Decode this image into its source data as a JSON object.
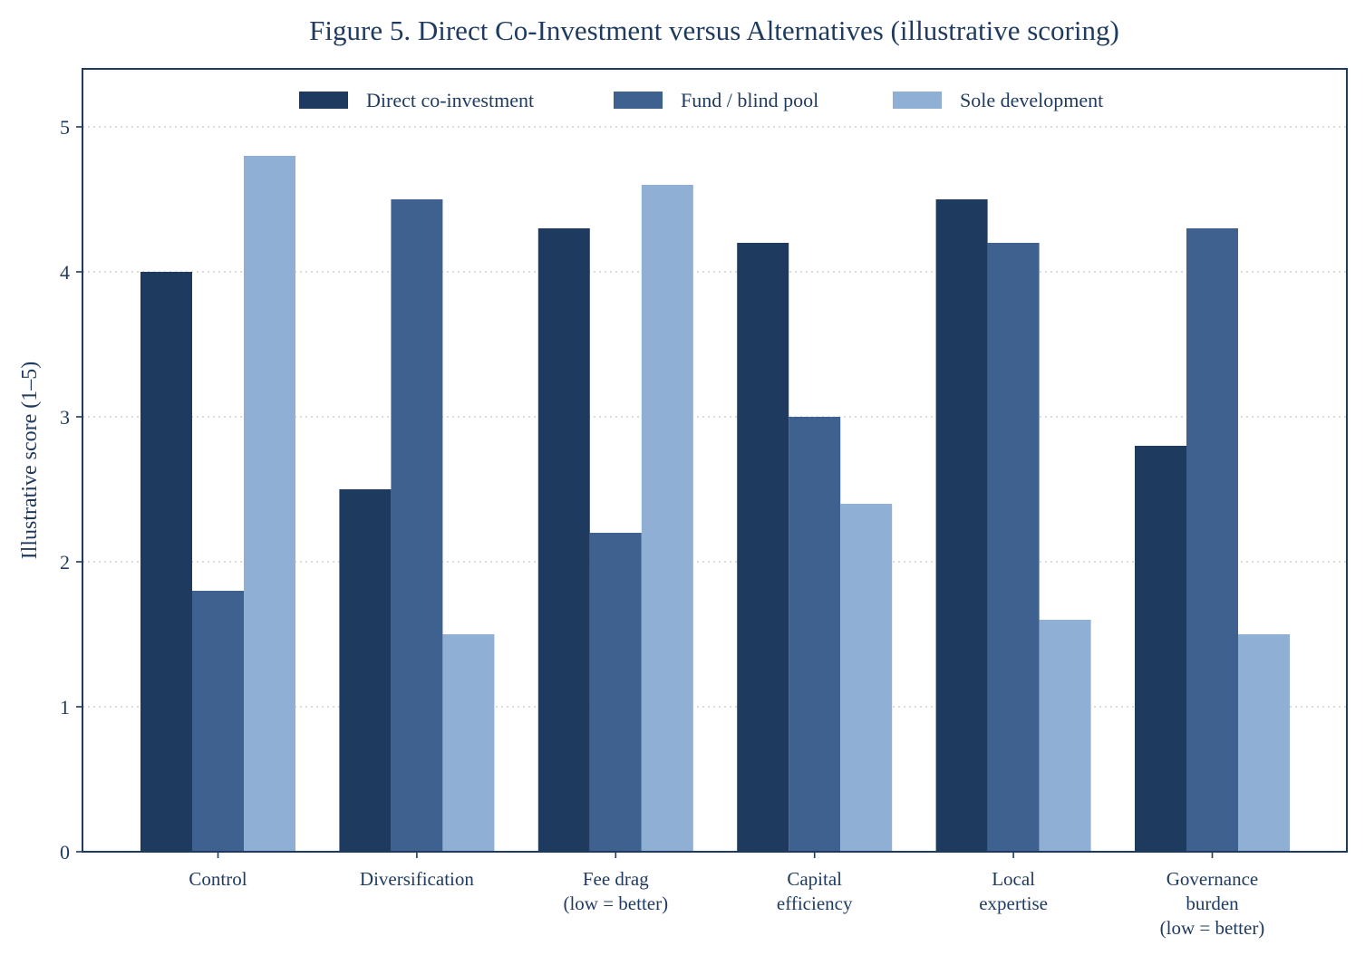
{
  "chart_data": {
    "type": "bar",
    "title": "Figure 5. Direct Co-Investment versus Alternatives (illustrative scoring)",
    "xlabel": "",
    "ylabel": "Illustrative score (1–5)",
    "ylim": [
      0,
      5.4
    ],
    "yticks": [
      "0",
      "1",
      "2",
      "3",
      "4",
      "5"
    ],
    "grid": "y-dotted",
    "legend_position": "top-center",
    "categories": [
      [
        "Control"
      ],
      [
        "Diversification"
      ],
      [
        "Fee drag",
        "(low = better)"
      ],
      [
        "Capital",
        "efficiency"
      ],
      [
        "Local",
        "expertise"
      ],
      [
        "Governance",
        "burden",
        "(low = better)"
      ]
    ],
    "series": [
      {
        "name": "Direct co-investment",
        "color": "#1f3a5f",
        "values": [
          4.0,
          2.5,
          4.3,
          4.2,
          4.5,
          2.8
        ]
      },
      {
        "name": "Fund / blind pool",
        "color": "#3f6190",
        "values": [
          1.8,
          4.5,
          2.2,
          3.0,
          4.2,
          4.3
        ]
      },
      {
        "name": "Sole development",
        "color": "#90afd4",
        "values": [
          4.8,
          1.5,
          4.6,
          2.4,
          1.6,
          1.5
        ]
      }
    ]
  }
}
